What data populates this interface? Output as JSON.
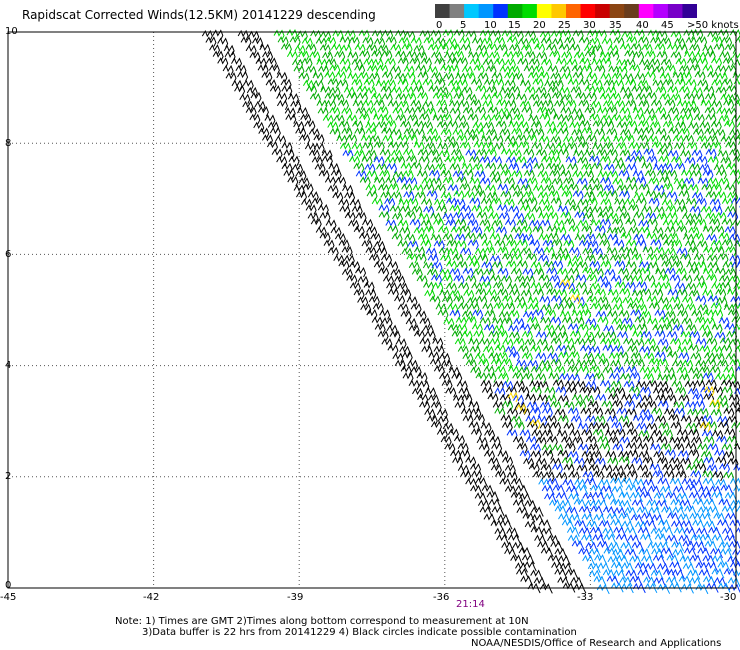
{
  "title": "Rapidscat Corrected Winds(12.5KM) 20141229 descending",
  "scale": {
    "colors": [
      "#404040",
      "#808080",
      "#00c8ff",
      "#0096ff",
      "#0032ff",
      "#00aa00",
      "#00dc00",
      "#ffff00",
      "#ffc800",
      "#ff6400",
      "#ff0000",
      "#c80000",
      "#8b4513",
      "#6a3d1e",
      "#ff00ff",
      "#b400ff",
      "#7800c8",
      "#320096"
    ],
    "labels": [
      "0",
      "5",
      "10",
      "15",
      "20",
      "25",
      "30",
      "35",
      "40",
      "45",
      ">50 knots"
    ]
  },
  "axes": {
    "y_ticks": [
      "10",
      "8",
      "6",
      "4",
      "2",
      "0"
    ],
    "x_ticks": [
      "-45",
      "-42",
      "-39",
      "-36",
      "-33",
      "-30"
    ],
    "lat_range": [
      0,
      10
    ],
    "lon_range": [
      -45,
      -30
    ],
    "grid": true
  },
  "time_label": "21:14",
  "notes": {
    "line1": "Note: 1) Times are GMT 2)Times along bottom correspond to measurement at 10N",
    "line2": "3)Data buffer is 22 hrs from 20141229 4) Black circles indicate possible contamination",
    "line3": "NOAA/NESDIS/Office of Research and Applications"
  }
}
